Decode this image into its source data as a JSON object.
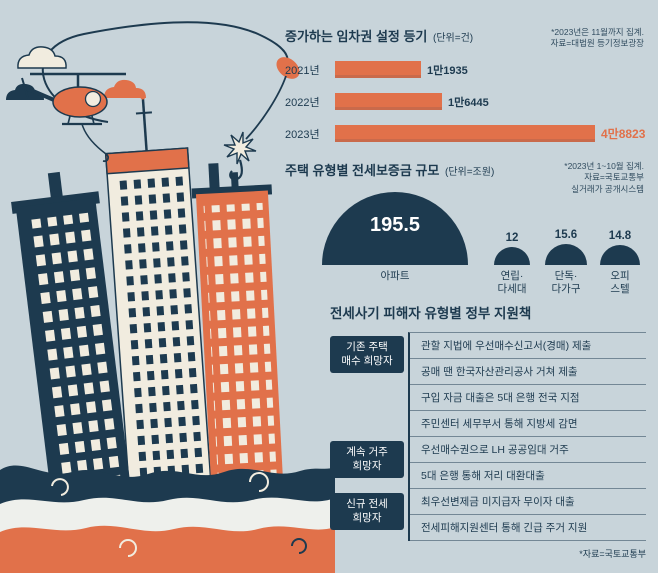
{
  "page": {
    "colors": {
      "bg": "#c8d4da",
      "navy": "#1d3a4f",
      "orange": "#e1714a",
      "cream": "#f1ecdf"
    }
  },
  "chart_data": [
    {
      "type": "bar",
      "orientation": "horizontal",
      "title": "증가하는 임차권 설정 등기",
      "unit_label": "(단위=건)",
      "categories": [
        "2021년",
        "2022년",
        "2023년"
      ],
      "values": [
        11935,
        16445,
        48823
      ],
      "value_labels": [
        "1만1935",
        "1만6445",
        "4만8823"
      ],
      "xlim": [
        0,
        48823
      ],
      "note_lines": [
        "*2023년은 11월까지 집계.",
        "자료=대법원 등기정보광장"
      ]
    },
    {
      "type": "semicircle",
      "title": "주택 유형별 전세보증금 규모",
      "unit_label": "(단위=조원)",
      "categories": [
        "아파트",
        "연립·다세대",
        "단독·다가구",
        "오피스텔"
      ],
      "category_lines": [
        [
          "아파트"
        ],
        [
          "연립·",
          "다세대"
        ],
        [
          "단독·",
          "다가구"
        ],
        [
          "오피",
          "스텔"
        ]
      ],
      "values": [
        195.5,
        12,
        15.6,
        14.8
      ],
      "value_labels": [
        "195.5",
        "12",
        "15.6",
        "14.8"
      ],
      "note_lines": [
        "*2023년 1~10월 집계.",
        "자료=국토교통부",
        "실거래가 공개시스템"
      ]
    }
  ],
  "support": {
    "title": "전세사기 피해자 유형별 정부 지원책",
    "groups": [
      {
        "label_lines": [
          "기존 주택",
          "매수 희망자"
        ],
        "items": [
          "관할 지법에 우선매수신고서(경매) 제출",
          "공매 땐 한국자산관리공사 거쳐 제출",
          "구입 자금 대출은 5대 은행 전국 지점",
          "주민센터 세무부서 통해 지방세 감면"
        ]
      },
      {
        "label_lines": [
          "계속 거주",
          "희망자"
        ],
        "items": [
          "우선매수권으로 LH 공공임대 거주",
          "5대 은행 통해 저리 대환대출"
        ]
      },
      {
        "label_lines": [
          "신규 전세",
          "희망자"
        ],
        "items": [
          "최우선변제금 미지급자 무이자 대출",
          "전세피해지원센터 통해 긴급 주거 지원"
        ]
      }
    ],
    "note": "*자료=국토교통부"
  }
}
